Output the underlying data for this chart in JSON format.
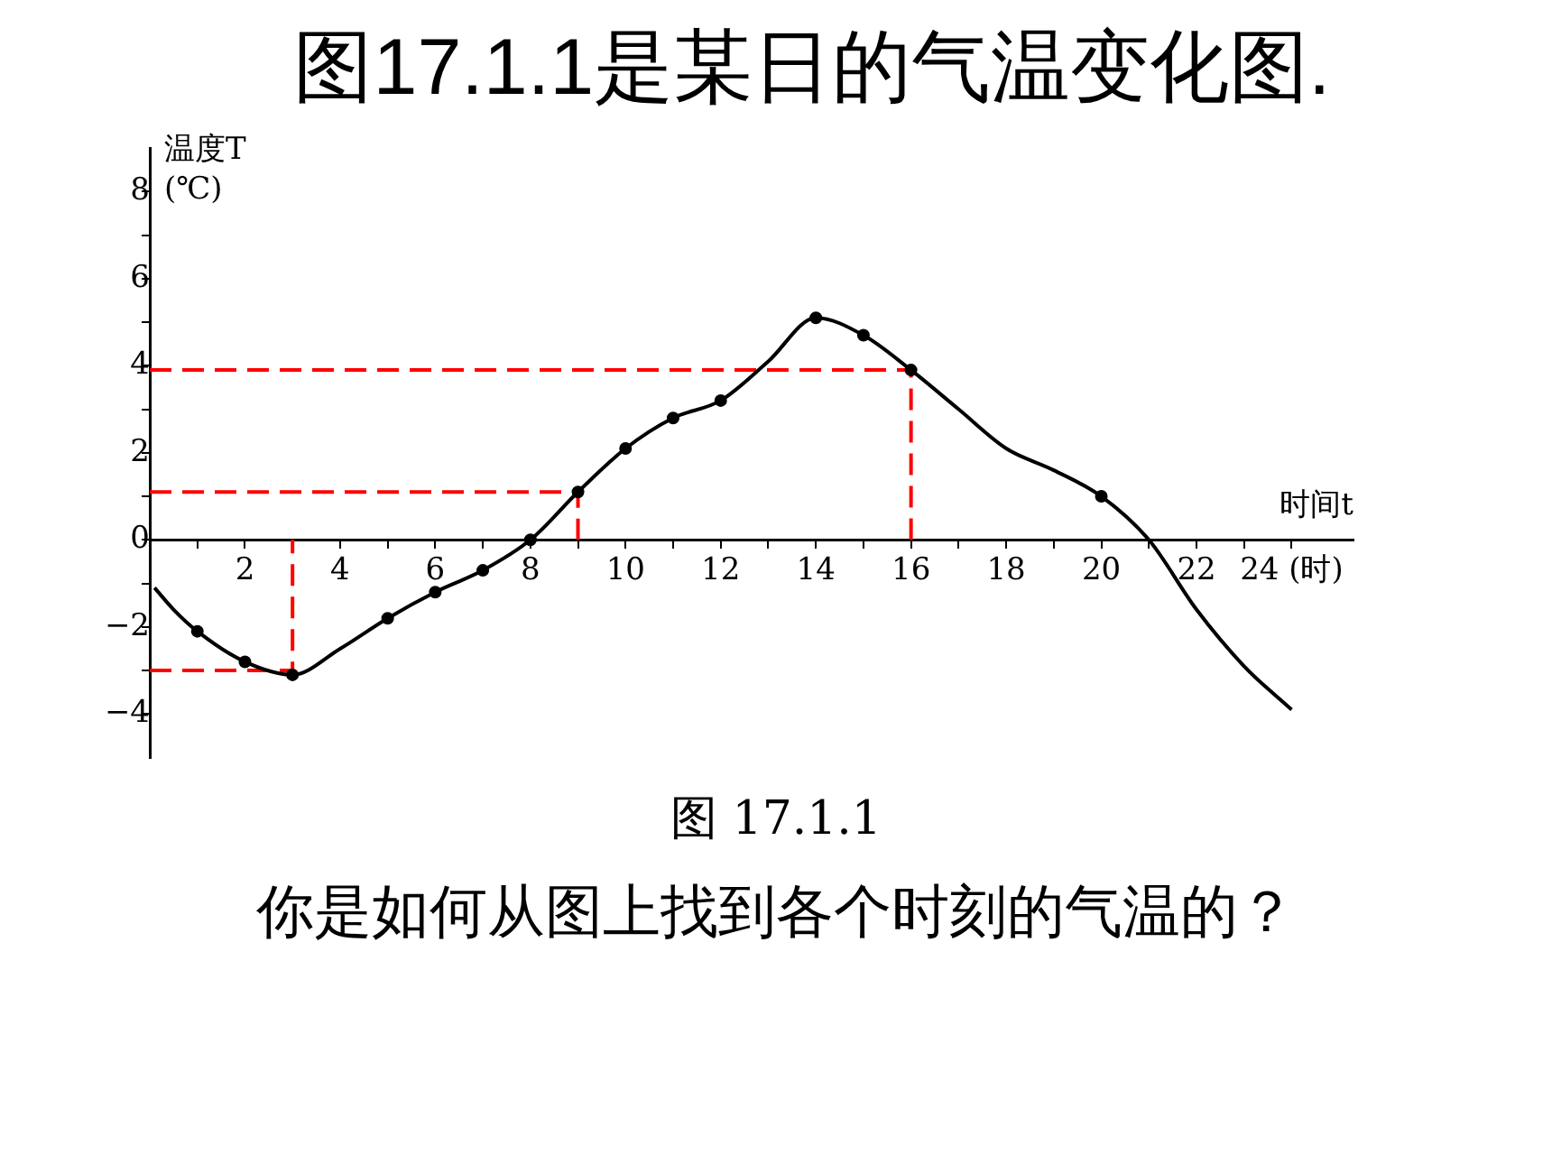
{
  "chart_data": {
    "type": "line",
    "title": "图17.1.1是某日的气温变化图.",
    "xlabel": "时间t",
    "ylabel": "温度T (℃)",
    "annotations": [
      "图 17.1.1",
      "你是如何从图上找到各个时刻的气温的？"
    ],
    "xlim": [
      0,
      25.3
    ],
    "ylim": [
      -5,
      9
    ],
    "xticks": [
      {
        "value": 1,
        "label": null
      },
      2,
      {
        "value": 3,
        "label": null
      },
      4,
      {
        "value": 5,
        "label": null
      },
      6,
      {
        "value": 7,
        "label": null
      },
      8,
      {
        "value": 9,
        "label": null
      },
      10,
      {
        "value": 11,
        "label": null
      },
      12,
      {
        "value": 13,
        "label": null
      },
      14,
      {
        "value": 15,
        "label": null
      },
      16,
      {
        "value": 17,
        "label": null
      },
      18,
      {
        "value": 19,
        "label": null
      },
      20,
      {
        "value": 21,
        "label": null
      },
      22,
      {
        "value": 23,
        "label": null
      },
      {
        "value": 24,
        "label": "24 (时)"
      }
    ],
    "yticks": [
      -4,
      {
        "value": -3,
        "label": null
      },
      -2,
      {
        "value": -1,
        "label": null
      },
      0,
      {
        "value": 1,
        "label": null
      },
      2,
      {
        "value": 3,
        "label": null
      },
      4,
      {
        "value": 5,
        "label": null
      },
      6,
      {
        "value": 7,
        "label": null
      },
      8
    ],
    "grid": false,
    "legend": false,
    "series": [
      {
        "type": "line",
        "marker": "none",
        "color": "#000000",
        "x": [
          0.1,
          0.5,
          1,
          2,
          3,
          4,
          5,
          6,
          7,
          8,
          9,
          10,
          11,
          12,
          13,
          14,
          15,
          16,
          17,
          18,
          19,
          20,
          21,
          22,
          23,
          24
        ],
        "values": [
          -1.1,
          -1.6,
          -2.1,
          -2.8,
          -3.1,
          -2.5,
          -1.8,
          -1.2,
          -0.7,
          0,
          1.1,
          2.1,
          2.8,
          3.2,
          4.1,
          5.1,
          4.7,
          3.9,
          3.0,
          2.1,
          1.6,
          1.0,
          0,
          -1.6,
          -2.9,
          -3.9
        ]
      },
      {
        "type": "scatter",
        "marker": "circle",
        "color": "#000000",
        "x": [
          1,
          2,
          3,
          5,
          6,
          7,
          8,
          9,
          10,
          11,
          12,
          14,
          15,
          16,
          20
        ],
        "values": [
          -2.1,
          -2.8,
          -3.1,
          -1.8,
          -1.2,
          -0.7,
          0,
          1.1,
          2.1,
          2.8,
          3.2,
          5.1,
          4.7,
          3.9,
          1.0
        ]
      },
      {
        "type": "line",
        "marker": "none",
        "line_style": "dashed",
        "color": "#ff0000",
        "x": [
          0,
          3,
          3
        ],
        "values": [
          -3,
          -3,
          0
        ]
      },
      {
        "type": "line",
        "marker": "none",
        "line_style": "dashed",
        "color": "#ff0000",
        "x": [
          0,
          9,
          9
        ],
        "values": [
          1.1,
          1.1,
          0
        ]
      },
      {
        "type": "line",
        "marker": "none",
        "line_style": "dashed",
        "color": "#ff0000",
        "x": [
          0,
          16,
          16
        ],
        "values": [
          3.9,
          3.9,
          0
        ]
      }
    ]
  }
}
